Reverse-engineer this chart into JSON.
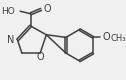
{
  "bg_color": "#f0f0f0",
  "line_color": "#404040",
  "line_width": 1.1,
  "font_size": 6.5,
  "figsize": [
    1.26,
    0.8
  ],
  "dpi": 100,
  "xlim": [
    0,
    126
  ],
  "ylim": [
    0,
    80
  ]
}
